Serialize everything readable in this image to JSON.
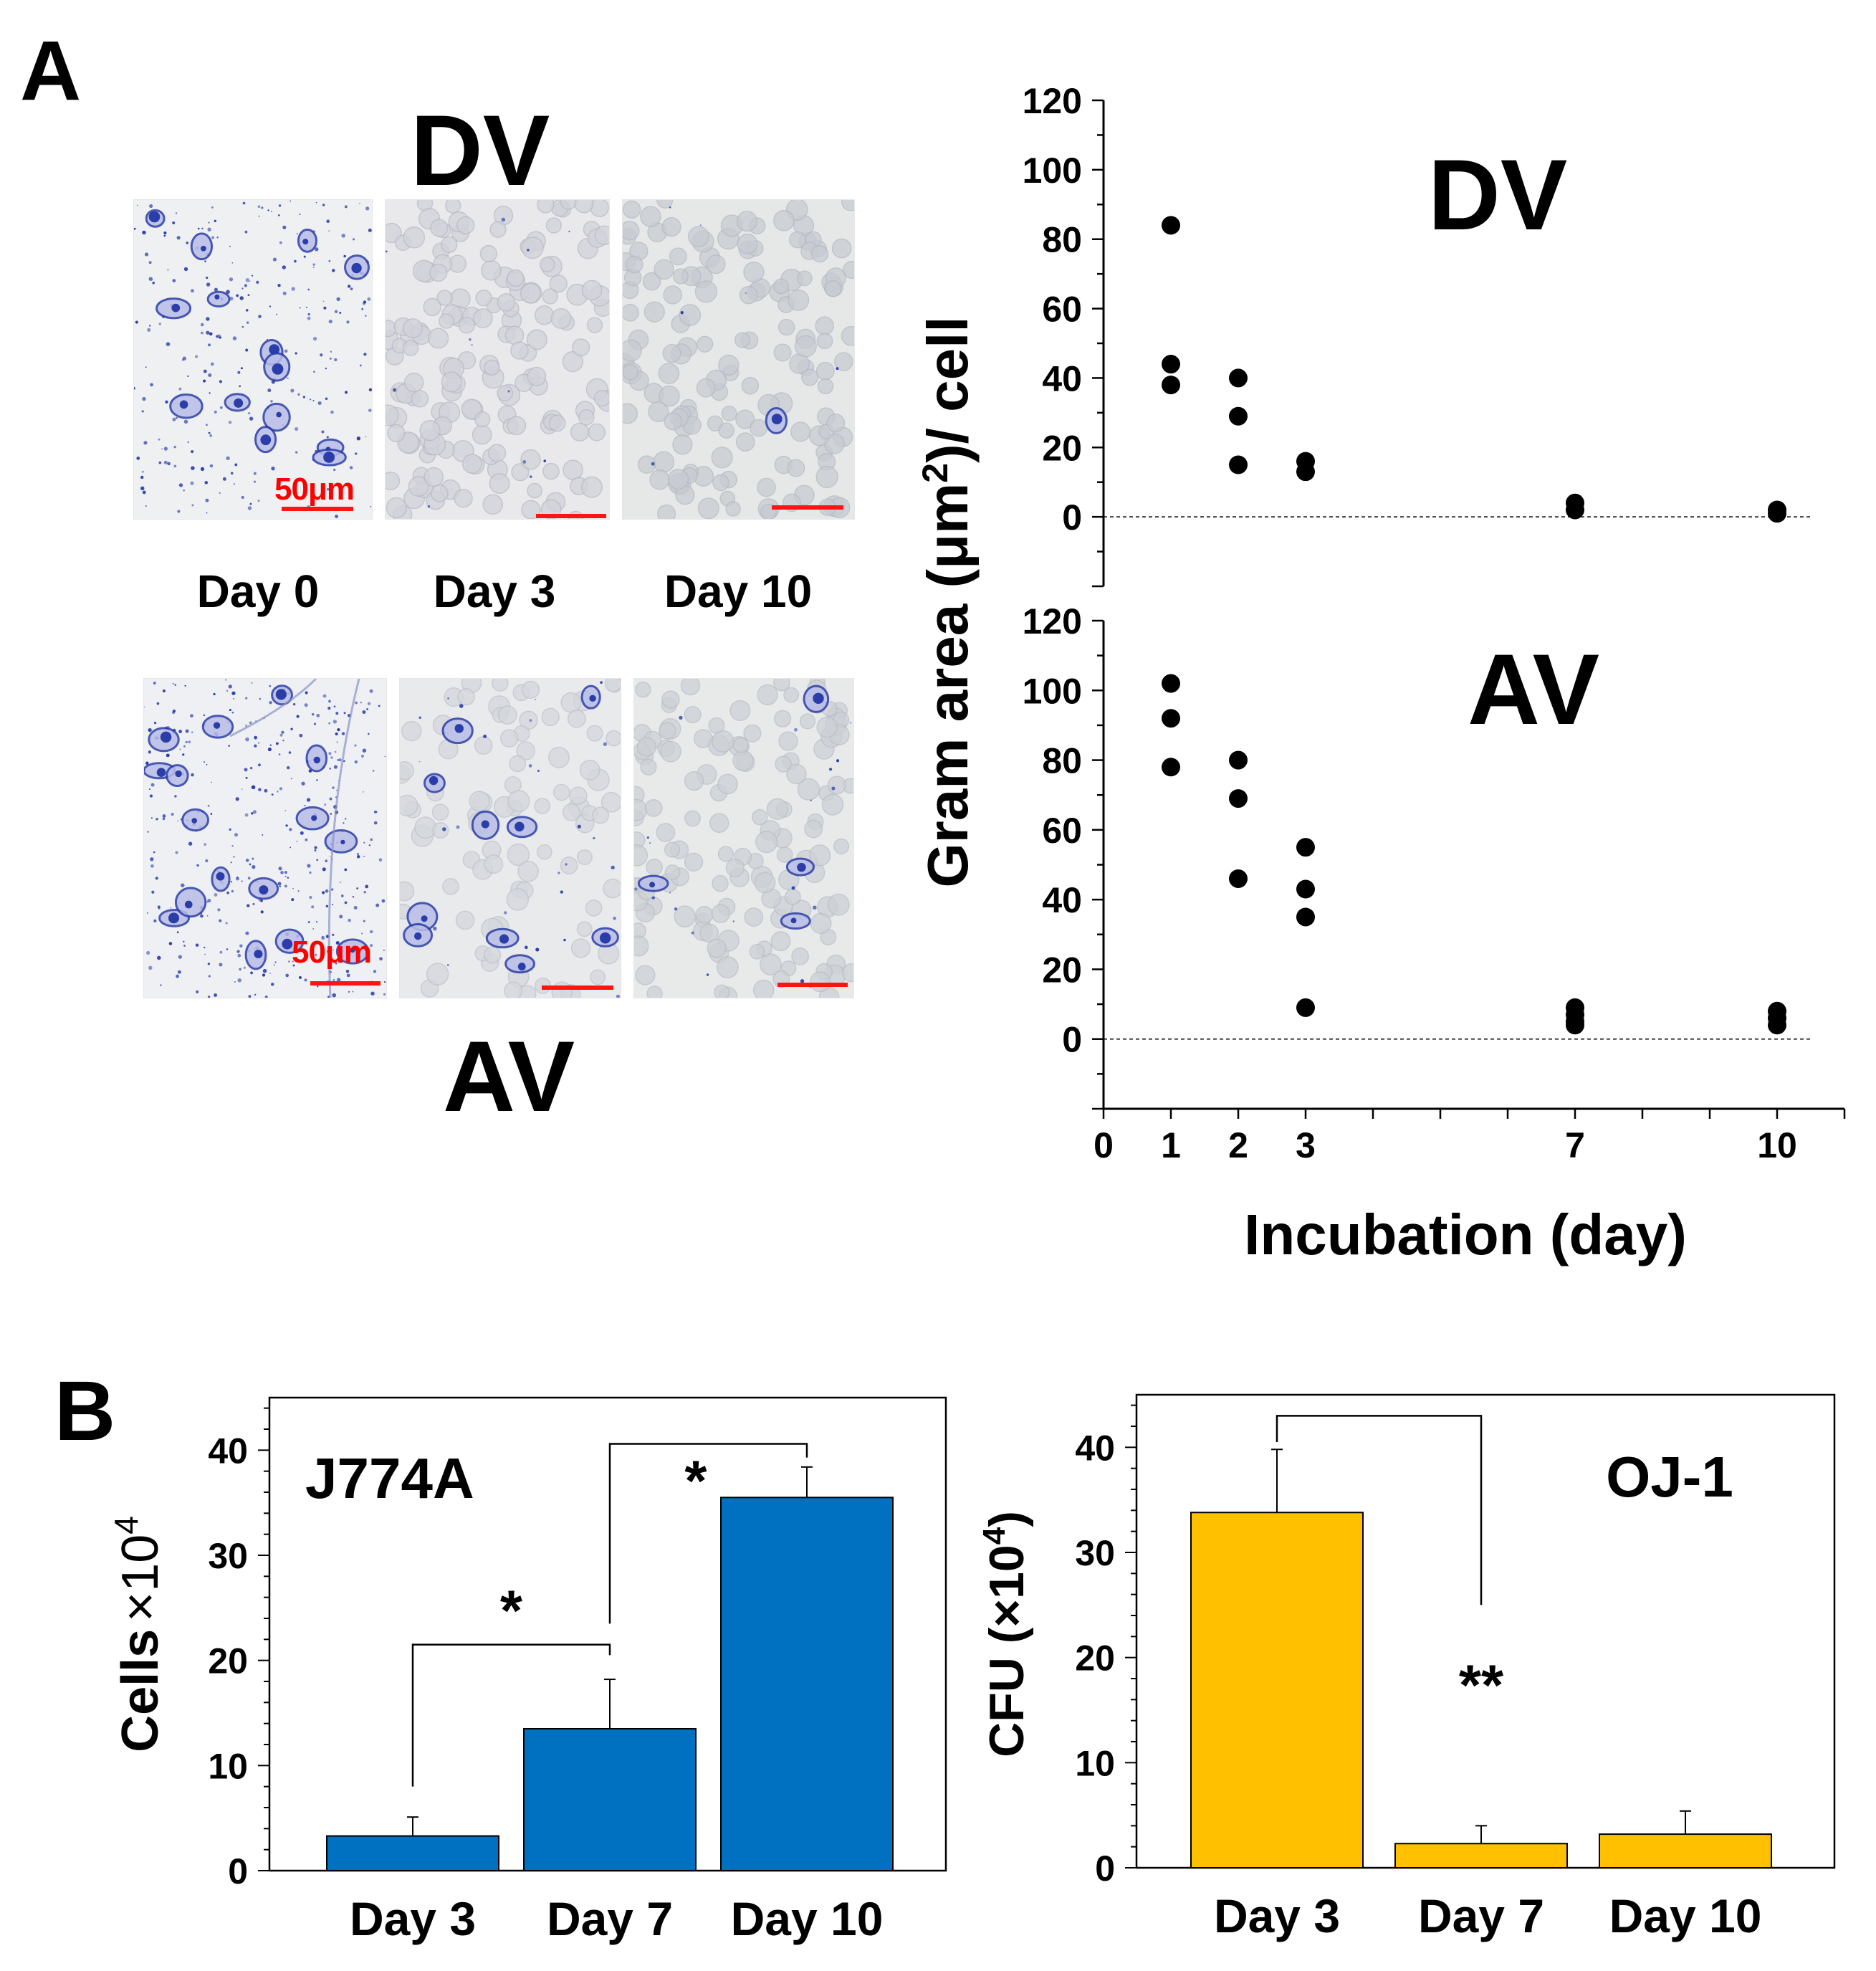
{
  "panel_a": {
    "letter": "A",
    "micrograph_rows": [
      {
        "title": "DV",
        "images": [
          {
            "day": "Day 0",
            "scale_label": "50μm"
          },
          {
            "day": "Day 3",
            "scale_label": ""
          },
          {
            "day": "Day 10",
            "scale_label": ""
          }
        ]
      },
      {
        "title": "AV",
        "images": [
          {
            "day": "",
            "scale_label": "50μm"
          },
          {
            "day": "",
            "scale_label": ""
          },
          {
            "day": "",
            "scale_label": ""
          }
        ]
      }
    ]
  },
  "panel_b": {
    "letter": "B"
  },
  "colors": {
    "dots": "#000000",
    "bar_blue": "#0070c0",
    "bar_yellow": "#ffc000",
    "scale_red": "#ff0000",
    "stain_blue": "#2b3da8",
    "rbc_gray": "#c9ccd6"
  },
  "chart_data": [
    {
      "id": "scatter-dv",
      "type": "scatter",
      "title": "DV",
      "ylabel": "Gram area (μm²)/ cell",
      "ylabel_parts": [
        "Gram area (μm",
        "2",
        ")/ cell"
      ],
      "ylim": [
        -20,
        120
      ],
      "yticks": [
        0,
        20,
        40,
        60,
        80,
        100,
        120
      ],
      "xlim": [
        0,
        11
      ],
      "points": [
        {
          "x": 1,
          "y": 84
        },
        {
          "x": 1,
          "y": 44
        },
        {
          "x": 1,
          "y": 38
        },
        {
          "x": 2,
          "y": 40
        },
        {
          "x": 2,
          "y": 29
        },
        {
          "x": 2,
          "y": 15
        },
        {
          "x": 3,
          "y": 16
        },
        {
          "x": 3,
          "y": 13
        },
        {
          "x": 7,
          "y": 4
        },
        {
          "x": 7,
          "y": 2
        },
        {
          "x": 10,
          "y": 2
        },
        {
          "x": 10,
          "y": 1
        }
      ],
      "zero_line": true
    },
    {
      "id": "scatter-av",
      "type": "scatter",
      "title": "AV",
      "xlabel": "Incubation (day)",
      "ylim": [
        -20,
        120
      ],
      "yticks": [
        0,
        20,
        40,
        60,
        80,
        100,
        120
      ],
      "xlim": [
        0,
        11
      ],
      "xticks": [
        0,
        1,
        2,
        3,
        7,
        10
      ],
      "points": [
        {
          "x": 1,
          "y": 102
        },
        {
          "x": 1,
          "y": 92
        },
        {
          "x": 1,
          "y": 78
        },
        {
          "x": 2,
          "y": 80
        },
        {
          "x": 2,
          "y": 69
        },
        {
          "x": 2,
          "y": 46
        },
        {
          "x": 3,
          "y": 55
        },
        {
          "x": 3,
          "y": 43
        },
        {
          "x": 3,
          "y": 35
        },
        {
          "x": 3,
          "y": 9
        },
        {
          "x": 7,
          "y": 9
        },
        {
          "x": 7,
          "y": 7
        },
        {
          "x": 7,
          "y": 5
        },
        {
          "x": 7,
          "y": 4
        },
        {
          "x": 10,
          "y": 8
        },
        {
          "x": 10,
          "y": 6
        },
        {
          "x": 10,
          "y": 4
        }
      ],
      "zero_line": true
    },
    {
      "id": "bar-j774a",
      "type": "bar",
      "title": "J774A",
      "ylabel_main": "Cells",
      "ylabel_suffix": "×10",
      "ylabel_sup": "4",
      "categories": [
        "Day 3",
        "Day 7",
        "Day 10"
      ],
      "values": [
        3.3,
        13.5,
        35.5
      ],
      "errors": [
        1.8,
        4.7,
        2.9
      ],
      "ylim": [
        0,
        45
      ],
      "yticks": [
        0,
        10,
        20,
        30,
        40
      ],
      "significance": [
        {
          "from": 0,
          "to": 1,
          "label": "*"
        },
        {
          "from": 1,
          "to": 2,
          "label": "*"
        }
      ]
    },
    {
      "id": "bar-oj1",
      "type": "bar",
      "title": "OJ-1",
      "ylabel_main": "CFU (×10",
      "ylabel_sup": "4",
      "ylabel_end": ")",
      "categories": [
        "Day 3",
        "Day 7",
        "Day 10"
      ],
      "values": [
        33.8,
        2.3,
        3.2
      ],
      "errors": [
        6.0,
        1.7,
        2.2
      ],
      "ylim": [
        0,
        45
      ],
      "yticks": [
        0,
        10,
        20,
        30,
        40
      ],
      "significance": [
        {
          "from": 0,
          "to": 1,
          "label": "**"
        }
      ]
    }
  ]
}
